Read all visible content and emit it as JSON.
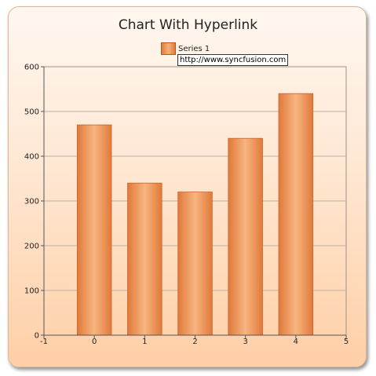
{
  "window": {
    "title": "Chart With Hyperlink",
    "tooltip": "http://www.syncfusion.com"
  },
  "colors": {
    "bar": "#e9864a",
    "bar_highlight": "#f7b27d",
    "bar_edge": "#c9652a",
    "grid": "#b9b0a6",
    "axis": "#555555"
  },
  "chart_data": {
    "type": "bar",
    "title": "Chart With Hyperlink",
    "xlabel": "",
    "ylabel": "",
    "x": [
      0,
      1,
      2,
      3,
      4
    ],
    "series": [
      {
        "name": "Series 1",
        "values": [
          470,
          340,
          320,
          440,
          540
        ]
      }
    ],
    "xlim": [
      -1,
      5
    ],
    "ylim": [
      0,
      600
    ],
    "x_ticks": [
      "-1",
      "0",
      "1",
      "2",
      "3",
      "4",
      "5"
    ],
    "y_ticks": [
      "0",
      "100",
      "200",
      "300",
      "400",
      "500",
      "600"
    ],
    "grid": true,
    "legend": "top-center"
  }
}
